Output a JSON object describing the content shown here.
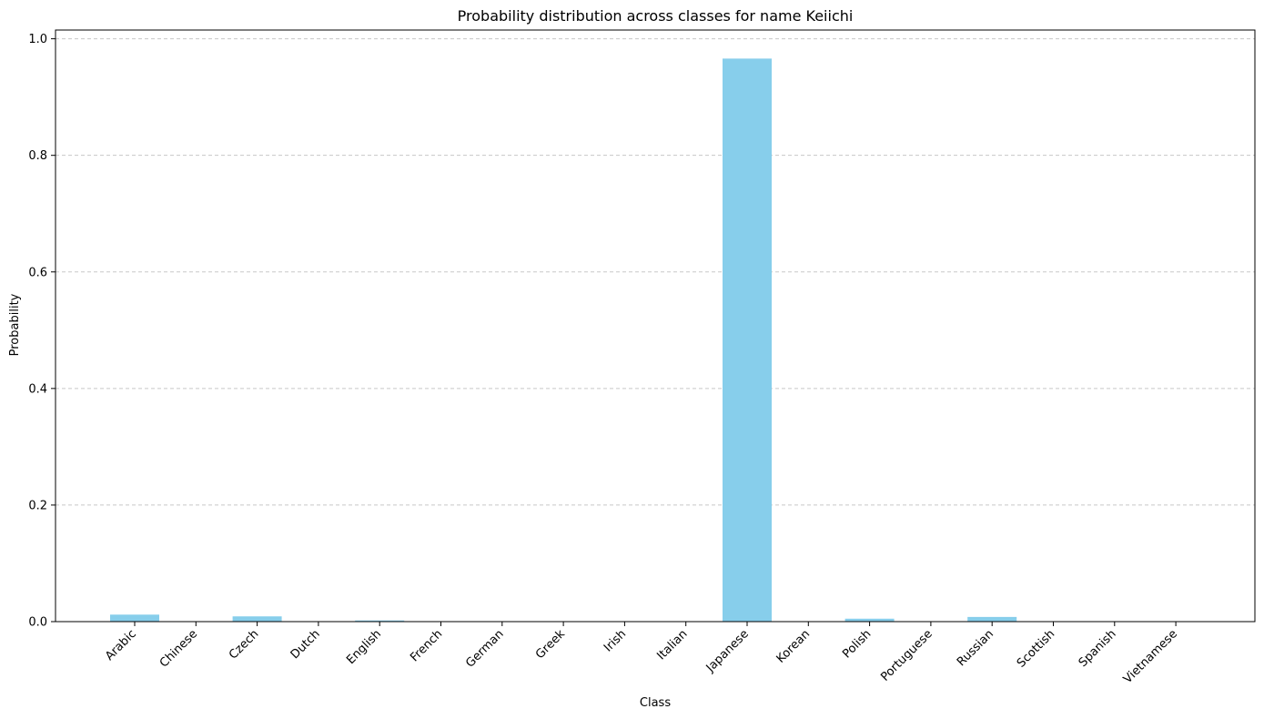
{
  "chart_data": {
    "type": "bar",
    "title": "Probability distribution across classes for name Keiichi",
    "xlabel": "Class",
    "ylabel": "Probability",
    "categories": [
      "Arabic",
      "Chinese",
      "Czech",
      "Dutch",
      "English",
      "French",
      "German",
      "Greek",
      "Irish",
      "Italian",
      "Japanese",
      "Korean",
      "Polish",
      "Portuguese",
      "Russian",
      "Scottish",
      "Spanish",
      "Vietnamese"
    ],
    "values": [
      0.012,
      0.0005,
      0.009,
      0.0005,
      0.002,
      0.0003,
      0.0003,
      0.0003,
      0.0003,
      0.0004,
      0.966,
      0.0005,
      0.005,
      0.0003,
      0.008,
      0.0003,
      0.0003,
      0.0004
    ],
    "ylim": [
      0,
      1.015
    ],
    "yticks": [
      0.0,
      0.2,
      0.4,
      0.6,
      0.8,
      1.0
    ],
    "ytick_labels": [
      "0.0",
      "0.2",
      "0.4",
      "0.6",
      "0.8",
      "1.0"
    ],
    "grid": "y-dashed",
    "bar_color": "#87ceeb"
  }
}
